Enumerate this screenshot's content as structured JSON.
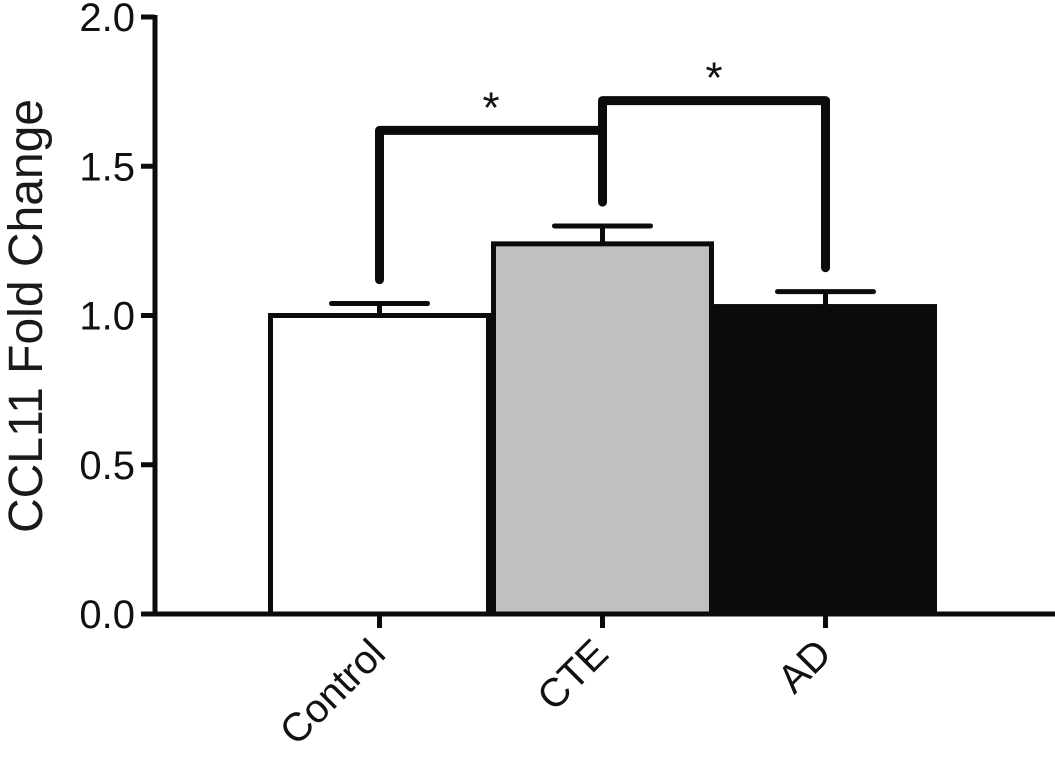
{
  "chart_data": {
    "type": "bar",
    "title": "",
    "xlabel": "",
    "ylabel": "CCL11 Fold Change",
    "ylim": [
      0,
      2.0
    ],
    "yticks": [
      "0.0",
      "0.5",
      "1.0",
      "1.5",
      "2.0"
    ],
    "grid": false,
    "categories": [
      "Control",
      "CTE",
      "AD"
    ],
    "values": [
      1.0,
      1.24,
      1.03
    ],
    "errors": [
      0.04,
      0.06,
      0.05
    ],
    "colors": [
      "#ffffff",
      "#c0c0c0",
      "#0b0b0b"
    ],
    "significance": [
      {
        "from": "Control",
        "to": "CTE",
        "label": "*"
      },
      {
        "from": "CTE",
        "to": "AD",
        "label": "*"
      }
    ]
  }
}
